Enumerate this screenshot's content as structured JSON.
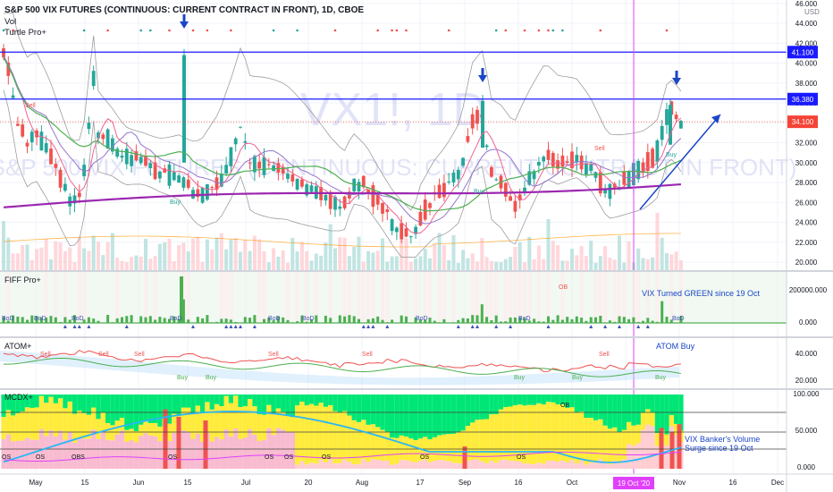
{
  "header": {
    "title": "S&P 500 VIX FUTURES (CONTINUOUS: CURRENT CONTRACT IN FRONT), 1D, CBOE",
    "vol_label": "Vol",
    "indicator_label": "Turtle Pro+"
  },
  "watermark": {
    "symbol": "VX1!, 1D",
    "description": "S&P 500 VIX FUTURES (CONTINUOUS: CURRENT CONTRACT IN FRONT)"
  },
  "colors": {
    "up": "#26a69a",
    "down": "#ef5350",
    "accent": "#e040fb",
    "level_line": "#1a1aff",
    "annotation": "#1a46c8",
    "ema_fast": "#f06292",
    "ema_mid": "#4caf50",
    "ma_slow": "#9c27b0",
    "price_tag": "#f44336"
  },
  "chart_data": [
    {
      "type": "candlestick",
      "panel": "price",
      "ylim": [
        19,
        47
      ],
      "yticks": [
        "20.000",
        "22.000",
        "24.000",
        "26.000",
        "28.000",
        "30.000",
        "32.000",
        "34.000",
        "36.000",
        "38.000",
        "40.000",
        "42.000",
        "44.000",
        "46.000"
      ],
      "currency": "USD",
      "levels": [
        {
          "value": 41.1,
          "label": "41.100"
        },
        {
          "value": 36.38,
          "label": "36.380"
        }
      ],
      "last_price": {
        "value": 34.1,
        "label": "34.100"
      },
      "x_ticks": [
        "May",
        "15",
        "Jun",
        "15",
        "Jul",
        "20",
        "Aug",
        "17",
        "Sep",
        "16",
        "Oct",
        "16",
        "Nov",
        "16",
        "Dec"
      ],
      "highlight_date": "19 Oct '20"
    },
    {
      "type": "bar",
      "panel": "FIFF Pro+",
      "title": "FIFF Pro+",
      "yticks": [
        "200000.000",
        "0.000"
      ],
      "annotation": "VIX Turned GREEN since 19 Oct",
      "signal_labels": [
        "BoD",
        "OB"
      ]
    },
    {
      "type": "line",
      "panel": "ATOM+",
      "title": "ATOM+",
      "yticks": [
        "40.000",
        "20.000"
      ],
      "annotation": "ATOM Buy",
      "signal_labels": [
        "Sell",
        "Buy"
      ]
    },
    {
      "type": "bar",
      "panel": "MCDX+",
      "title": "MCDX+",
      "yticks": [
        "100.000",
        "50.000",
        "0.000"
      ],
      "annotation": "VIX Banker's Volume Surge since 19 Oct",
      "signal_labels": [
        "OS",
        "OB"
      ]
    }
  ]
}
